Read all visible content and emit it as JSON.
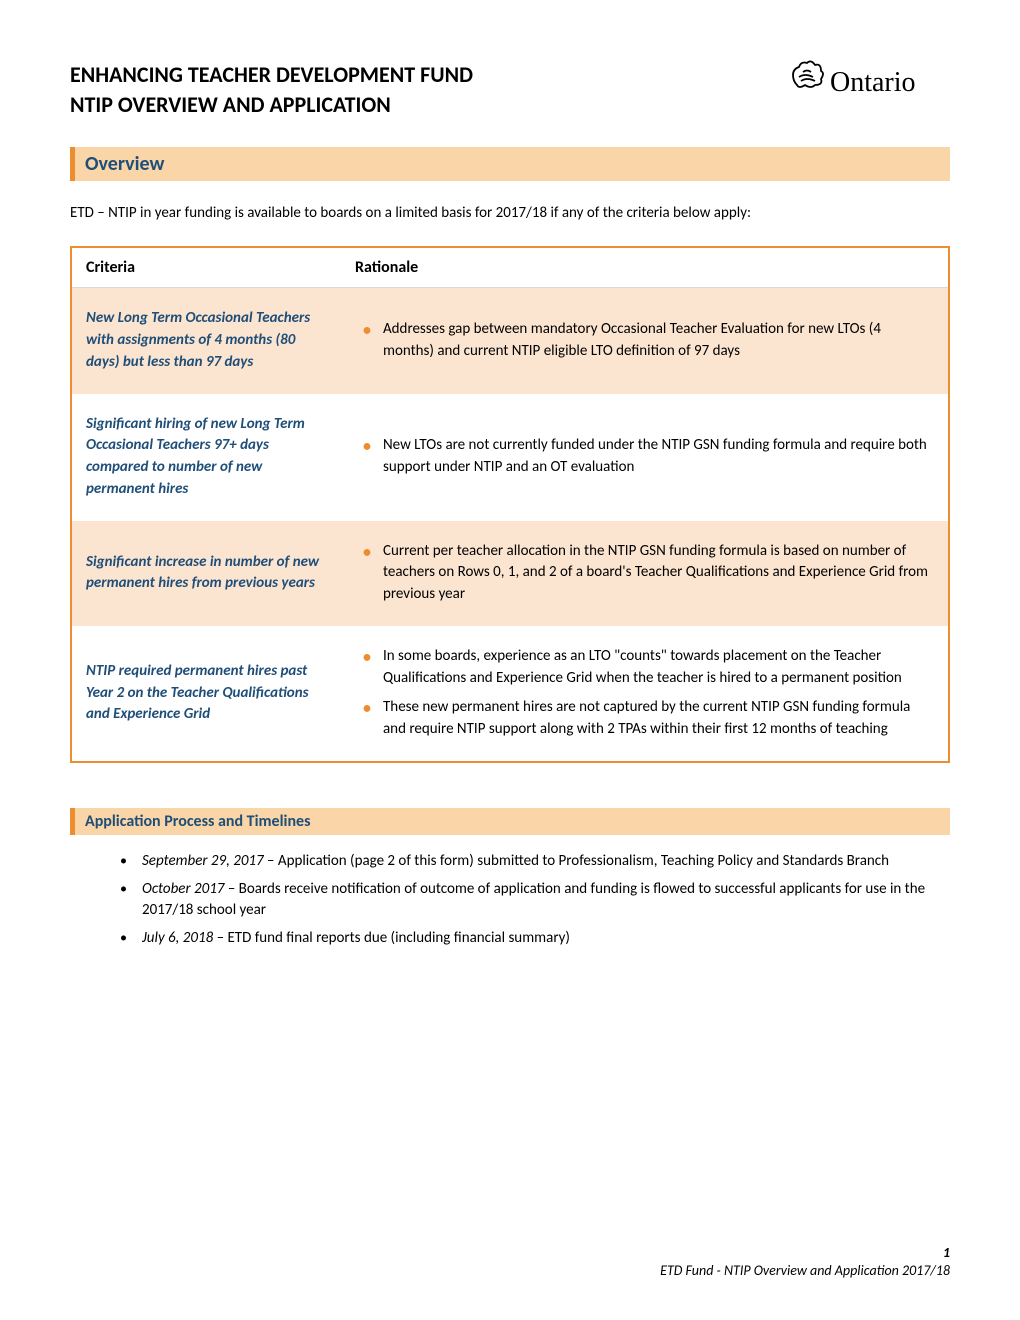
{
  "header": {
    "title_line1": "ENHANCING TEACHER DEVELOPMENT FUND",
    "title_line2": "NTIP OVERVIEW AND APPLICATION",
    "logo_text": "Ontario"
  },
  "overview": {
    "heading": "Overview",
    "intro": "ETD – NTIP in year funding is available to boards on a limited basis for 2017/18 if any of the criteria below apply:"
  },
  "table": {
    "header_criteria": "Criteria",
    "header_rationale": "Rationale",
    "rows": [
      {
        "shaded": true,
        "criteria": "New Long Term Occasional Teachers with assignments of 4 months (80 days) but less than 97 days",
        "rationale": [
          "Addresses gap between mandatory Occasional Teacher Evaluation for new LTOs (4 months) and current NTIP eligible LTO definition of 97 days"
        ]
      },
      {
        "shaded": false,
        "criteria": "Significant hiring of new Long Term Occasional Teachers 97+ days compared to number of new permanent hires",
        "rationale": [
          "New LTOs are not currently funded under the NTIP GSN funding formula and require both support under NTIP and an OT evaluation"
        ]
      },
      {
        "shaded": true,
        "criteria": "Significant increase in number of new permanent hires from previous years",
        "rationale": [
          "Current per teacher allocation in the NTIP GSN funding formula is based on number of teachers on Rows 0, 1, and 2 of a board's Teacher Qualifications and Experience Grid from previous year"
        ]
      },
      {
        "shaded": false,
        "criteria": "NTIP required permanent hires past Year 2 on the Teacher Qualifications and Experience Grid",
        "rationale": [
          "In some boards, experience as an LTO \"counts\" towards placement on the Teacher Qualifications and Experience Grid when the teacher is hired to a permanent position",
          "These new permanent hires are not captured by the current NTIP GSN funding formula and require NTIP support along with 2 TPAs within their first 12 months of teaching"
        ]
      }
    ]
  },
  "timelines": {
    "heading": "Application Process and Timelines",
    "items": [
      {
        "date": "September 29, 2017",
        "text": " – Application (page 2 of this form) submitted to Professionalism, Teaching Policy and Standards Branch"
      },
      {
        "date": "October 2017 ",
        "text": " – Boards receive notification of outcome of application and funding is flowed to successful applicants for use in the 2017/18 school year"
      },
      {
        "date": "July 6, 2018",
        "text": " – ETD fund final reports due (including financial summary)"
      }
    ]
  },
  "footer": {
    "page": "1",
    "text": "ETD Fund - NTIP Overview and Application 2017/18"
  },
  "colors": {
    "accent_orange": "#ec8e2f",
    "light_orange": "#f9d5a8",
    "row_shade": "#fbe5d0",
    "heading_blue": "#1f4e79",
    "text_black": "#000000",
    "background": "#ffffff",
    "border_gray": "#d9d9d9"
  }
}
